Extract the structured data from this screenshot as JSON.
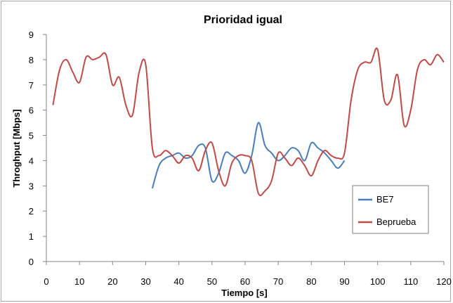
{
  "chart_data": {
    "type": "line",
    "title": "Prioridad igual",
    "xlabel": "Tiempo [s]",
    "ylabel": "Throghput [Mbps]",
    "xlim": [
      0,
      120
    ],
    "ylim": [
      0,
      9
    ],
    "xticks": [
      "0",
      "10",
      "20",
      "30",
      "40",
      "50",
      "60",
      "70",
      "80",
      "90",
      "100",
      "110",
      "120"
    ],
    "yticks": [
      "0",
      "1",
      "2",
      "3",
      "4",
      "5",
      "6",
      "7",
      "8",
      "9"
    ],
    "grid": false,
    "legend_position": "right",
    "series": [
      {
        "name": "BE7",
        "color": "#4a7ebb",
        "x": [
          32,
          34,
          36,
          38,
          40,
          42,
          44,
          46,
          48,
          50,
          52,
          54,
          56,
          58,
          60,
          62,
          64,
          66,
          68,
          70,
          72,
          74,
          76,
          78,
          80,
          82,
          84,
          86,
          88,
          90
        ],
        "y": [
          2.9,
          3.8,
          4.1,
          4.2,
          4.3,
          4.1,
          4.2,
          4.6,
          4.5,
          3.2,
          3.5,
          4.3,
          4.2,
          4.0,
          3.5,
          4.2,
          5.5,
          4.6,
          4.3,
          4.0,
          4.2,
          4.5,
          4.4,
          4.0,
          4.7,
          4.5,
          4.3,
          4.0,
          3.7,
          4.0
        ]
      },
      {
        "name": "Beprueba",
        "color": "#be4b48",
        "x": [
          2,
          4,
          6,
          8,
          10,
          12,
          14,
          16,
          18,
          20,
          22,
          24,
          26,
          28,
          30,
          32,
          34,
          36,
          38,
          40,
          42,
          44,
          46,
          48,
          50,
          52,
          54,
          56,
          58,
          60,
          62,
          64,
          66,
          68,
          70,
          72,
          74,
          76,
          78,
          80,
          82,
          84,
          86,
          88,
          90,
          92,
          94,
          96,
          98,
          100,
          102,
          104,
          106,
          108,
          110,
          112,
          114,
          116,
          118,
          120
        ],
        "y": [
          6.2,
          7.6,
          8.0,
          7.5,
          7.1,
          8.1,
          8.0,
          8.1,
          8.2,
          7.0,
          7.3,
          6.2,
          5.8,
          7.5,
          7.8,
          4.5,
          4.2,
          4.4,
          4.2,
          3.9,
          4.2,
          4.1,
          3.6,
          4.4,
          4.7,
          3.6,
          3.0,
          3.9,
          4.2,
          4.2,
          4.0,
          2.7,
          2.8,
          3.2,
          4.3,
          4.1,
          3.8,
          4.1,
          3.8,
          3.4,
          4.0,
          4.4,
          4.2,
          4.1,
          4.3,
          6.4,
          7.6,
          7.9,
          7.9,
          8.4,
          6.4,
          6.4,
          7.4,
          5.4,
          6.0,
          7.6,
          8.0,
          7.8,
          8.2,
          7.9
        ]
      }
    ]
  }
}
